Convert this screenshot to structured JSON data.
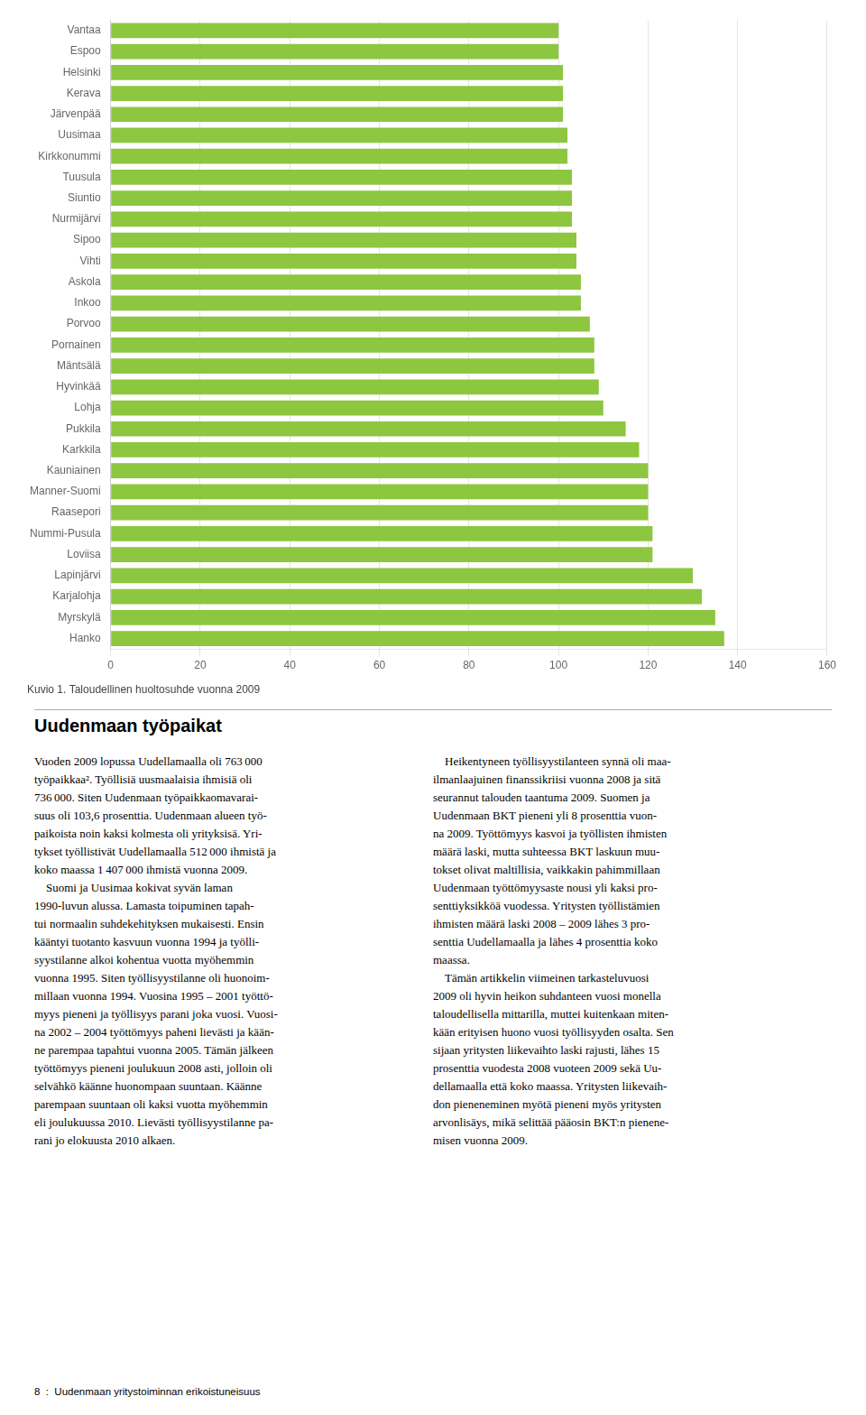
{
  "chart_data": {
    "type": "bar",
    "orientation": "horizontal",
    "title": "Kuvio 1. Taloudellinen huoltosuhde vuonna 2009",
    "categories": [
      "Vantaa",
      "Espoo",
      "Helsinki",
      "Kerava",
      "Järvenpää",
      "Uusimaa",
      "Kirkkonummi",
      "Tuusula",
      "Siuntio",
      "Nurmijärvi",
      "Sipoo",
      "Vihti",
      "Askola",
      "Inkoo",
      "Porvoo",
      "Pornainen",
      "Mäntsälä",
      "Hyvinkää",
      "Lohja",
      "Pukkila",
      "Karkkila",
      "Kauniainen",
      "Manner-Suomi",
      "Raasepori",
      "Nummi-Pusula",
      "Loviisa",
      "Lapinjärvi",
      "Karjalohja",
      "Myrskylä",
      "Hanko"
    ],
    "values": [
      100,
      100,
      101,
      101,
      101,
      102,
      102,
      103,
      103,
      103,
      104,
      104,
      105,
      105,
      107,
      108,
      108,
      109,
      110,
      115,
      118,
      120,
      120,
      120,
      121,
      121,
      130,
      132,
      135,
      137
    ],
    "color": "#8DC63F",
    "xlim": [
      0,
      160
    ],
    "xticks": [
      0,
      20,
      40,
      60,
      80,
      100,
      120,
      140,
      160
    ],
    "grid": true
  },
  "section_title": "Uudenmaan työpaikat",
  "left_col": [
    "Vuoden 2009 lopussa Uudellamaalla oli 763 000",
    "työpaikkaa². Työllisiä uusmaalaisia ihmisiä oli",
    "736 000. Siten Uudenmaan työpaikkaomavarai-",
    "suus oli 103,6 prosenttia. Uudenmaan alueen työ-",
    "paikoista noin kaksi kolmesta oli yrityksisä. Yri-",
    "tykset työllistivät Uudellamaalla 512 000 ihmistä ja",
    "koko maassa 1 407 000 ihmistä vuonna 2009.",
    "    Suomi ja Uusimaa kokivat syvän laman",
    "1990-luvun alussa. Lamasta toipuminen tapah-",
    "tui normaalin suhdekehityksen mukaisesti. Ensin",
    "kääntyi tuotanto kasvuun vuonna 1994 ja työlli-",
    "syystilanne alkoi kohentua vuotta myöhemmin",
    "vuonna 1995. Siten työllisyystilanne oli huonoim-",
    "millaan vuonna 1994. Vuosina 1995 – 2001 työttö-",
    "myys pieneni ja työllisyys parani joka vuosi. Vuosi-",
    "na 2002 – 2004 työttömyys paheni lievästi ja kään-",
    "ne parempaa tapahtui vuonna 2005. Tämän jälkeen",
    "työttömyys pieneni joulukuun 2008 asti, jolloin oli",
    "selvähkö käänne huonompaan suuntaan. Käänne",
    "parempaan suuntaan oli kaksi vuotta myöhemmin",
    "eli joulukuussa 2010. Lievästi työllisyystilanne pa-",
    "rani jo elokuusta 2010 alkaen."
  ],
  "right_col": [
    "    Heikentyneen työllisyystilanteen synnä oli maa-",
    "ilmanlaajuinen finanssikriisi vuonna 2008 ja sitä",
    "seurannut talouden taantuma 2009. Suomen ja",
    "Uudenmaan BKT pieneni yli 8 prosenttia vuon-",
    "na 2009. Työttömyys kasvoi ja työllisten ihmisten",
    "määrä laski, mutta suhteessa BKT laskuun muu-",
    "tokset olivat maltillisia, vaikkakin pahimmillaan",
    "Uudenmaan työttömyysaste nousi yli kaksi pro-",
    "senttiyksikköä vuodessa. Yritysten työllistämien",
    "ihmisten määrä laski 2008 – 2009 lähes 3 pro-",
    "senttia Uudellamaalla ja lähes 4 prosenttia koko",
    "maassa.",
    "    Tämän artikkelin viimeinen tarkasteluvuosi",
    "2009 oli hyvin heikon suhdanteen vuosi monella",
    "taloudellisella mittarilla, muttei kuitenkaan miten-",
    "kään erityisen huono vuosi työllisyyden osalta. Sen",
    "sijaan yritysten liikevaihto laski rajusti, lähes 15",
    "prosenttia vuodesta 2008 vuoteen 2009 sekä Uu-",
    "dellamaalla että koko maassa. Yritysten liikevaih-",
    "don pieneneminen myötä pieneni myös yritysten",
    "arvonlisäys, mikä selittää pääosin BKT:n pienene-",
    "misen vuonna 2009."
  ],
  "footer_text": "8  :  Uudenmaan yritystoiminnan erikoistuneisuus"
}
